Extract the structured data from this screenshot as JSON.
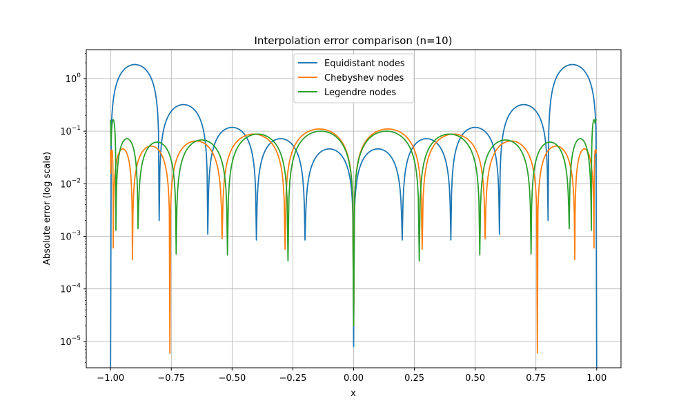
{
  "chart_data": {
    "type": "line",
    "title": "Interpolation error comparison (n=10)",
    "xlabel": "x",
    "ylabel": "Absolute error (log scale)",
    "xlim": [
      -1.1,
      1.1
    ],
    "ylim_log10": [
      -5.5,
      0.55
    ],
    "yscale": "log",
    "grid": true,
    "legend_position": "top-center",
    "x_ticks": [
      -1.0,
      -0.75,
      -0.5,
      -0.25,
      0.0,
      0.25,
      0.5,
      0.75,
      1.0
    ],
    "x_tick_labels": [
      "−1.00",
      "−0.75",
      "−0.50",
      "−0.25",
      "0.00",
      "0.25",
      "0.50",
      "0.75",
      "1.00"
    ],
    "y_ticks_log10": [
      -5,
      -4,
      -3,
      -2,
      -1,
      0
    ],
    "y_tick_labels": [
      {
        "base": "10",
        "exp": "−5"
      },
      {
        "base": "10",
        "exp": "−4"
      },
      {
        "base": "10",
        "exp": "−3"
      },
      {
        "base": "10",
        "exp": "−2"
      },
      {
        "base": "10",
        "exp": "−1"
      },
      {
        "base": "10",
        "exp": "0"
      }
    ],
    "series": [
      {
        "name": "Equidistant nodes",
        "color": "#1f77b4",
        "lobes": [
          {
            "from": -1.0,
            "to": -0.8,
            "peak": 1.85,
            "endpoint_error": [
              3e-06,
              0.002
            ]
          },
          {
            "from": -0.8,
            "to": -0.6,
            "peak": 0.32,
            "endpoint_error": [
              0.002,
              0.0011
            ]
          },
          {
            "from": -0.6,
            "to": -0.4,
            "peak": 0.118,
            "endpoint_error": [
              0.0011,
              0.00085
            ]
          },
          {
            "from": -0.4,
            "to": -0.2,
            "peak": 0.072,
            "endpoint_error": [
              0.00085,
              0.00085
            ]
          },
          {
            "from": -0.2,
            "to": 0.0,
            "peak": 0.046,
            "endpoint_error": [
              0.00085,
              8e-06
            ]
          },
          {
            "from": 0.0,
            "to": 0.2,
            "peak": 0.046,
            "endpoint_error": [
              8e-06,
              0.00085
            ]
          },
          {
            "from": 0.2,
            "to": 0.4,
            "peak": 0.072,
            "endpoint_error": [
              0.00085,
              0.00085
            ]
          },
          {
            "from": 0.4,
            "to": 0.6,
            "peak": 0.118,
            "endpoint_error": [
              0.00085,
              0.0011
            ]
          },
          {
            "from": 0.6,
            "to": 0.8,
            "peak": 0.32,
            "endpoint_error": [
              0.0011,
              0.002
            ]
          },
          {
            "from": 0.8,
            "to": 1.0,
            "peak": 1.85,
            "endpoint_error": [
              0.002,
              3e-06
            ]
          }
        ]
      },
      {
        "name": "Chebyshev nodes",
        "color": "#ff7f0e",
        "lobes": [
          {
            "from": -1.0,
            "to": -0.989,
            "peak": 0.044,
            "endpoint_error": [
              0.044,
              0.0006
            ]
          },
          {
            "from": -0.989,
            "to": -0.91,
            "peak": 0.046,
            "endpoint_error": [
              0.0006,
              0.00036
            ]
          },
          {
            "from": -0.91,
            "to": -0.756,
            "peak": 0.052,
            "endpoint_error": [
              0.00036,
              6e-06
            ]
          },
          {
            "from": -0.756,
            "to": -0.541,
            "peak": 0.065,
            "endpoint_error": [
              6e-06,
              0.0009
            ]
          },
          {
            "from": -0.541,
            "to": -0.282,
            "peak": 0.088,
            "endpoint_error": [
              0.0009,
              0.00057
            ]
          },
          {
            "from": -0.282,
            "to": 0.0,
            "peak": 0.11,
            "endpoint_error": [
              0.00057,
              2e-05
            ]
          },
          {
            "from": 0.0,
            "to": 0.282,
            "peak": 0.11,
            "endpoint_error": [
              2e-05,
              0.00057
            ]
          },
          {
            "from": 0.282,
            "to": 0.541,
            "peak": 0.088,
            "endpoint_error": [
              0.00057,
              0.0009
            ]
          },
          {
            "from": 0.541,
            "to": 0.756,
            "peak": 0.065,
            "endpoint_error": [
              0.0009,
              6e-06
            ]
          },
          {
            "from": 0.756,
            "to": 0.91,
            "peak": 0.052,
            "endpoint_error": [
              6e-06,
              0.00036
            ]
          },
          {
            "from": 0.91,
            "to": 0.989,
            "peak": 0.046,
            "endpoint_error": [
              0.00036,
              0.0006
            ]
          },
          {
            "from": 0.989,
            "to": 1.0,
            "peak": 0.044,
            "endpoint_error": [
              0.0006,
              0.044
            ]
          }
        ]
      },
      {
        "name": "Legendre nodes",
        "color": "#2ca02c",
        "lobes": [
          {
            "from": -1.0,
            "to": -0.978,
            "peak": 0.165,
            "endpoint_error": [
              0.165,
              0.0013
            ]
          },
          {
            "from": -0.978,
            "to": -0.887,
            "peak": 0.072,
            "endpoint_error": [
              0.0013,
              0.0014
            ]
          },
          {
            "from": -0.887,
            "to": -0.73,
            "peak": 0.062,
            "endpoint_error": [
              0.0014,
              0.00046
            ]
          },
          {
            "from": -0.73,
            "to": -0.519,
            "peak": 0.068,
            "endpoint_error": [
              0.00046,
              0.00044
            ]
          },
          {
            "from": -0.519,
            "to": -0.27,
            "peak": 0.088,
            "endpoint_error": [
              0.00044,
              0.00034
            ]
          },
          {
            "from": -0.27,
            "to": 0.0,
            "peak": 0.1,
            "endpoint_error": [
              0.00034,
              2e-05
            ]
          },
          {
            "from": 0.0,
            "to": 0.27,
            "peak": 0.1,
            "endpoint_error": [
              2e-05,
              0.00034
            ]
          },
          {
            "from": 0.27,
            "to": 0.519,
            "peak": 0.088,
            "endpoint_error": [
              0.00034,
              0.00044
            ]
          },
          {
            "from": 0.519,
            "to": 0.73,
            "peak": 0.068,
            "endpoint_error": [
              0.00044,
              0.00046
            ]
          },
          {
            "from": 0.73,
            "to": 0.887,
            "peak": 0.062,
            "endpoint_error": [
              0.00046,
              0.0014
            ]
          },
          {
            "from": 0.887,
            "to": 0.978,
            "peak": 0.072,
            "endpoint_error": [
              0.0014,
              0.0013
            ]
          },
          {
            "from": 0.978,
            "to": 1.0,
            "peak": 0.165,
            "endpoint_error": [
              0.0013,
              0.165
            ]
          }
        ]
      }
    ]
  }
}
